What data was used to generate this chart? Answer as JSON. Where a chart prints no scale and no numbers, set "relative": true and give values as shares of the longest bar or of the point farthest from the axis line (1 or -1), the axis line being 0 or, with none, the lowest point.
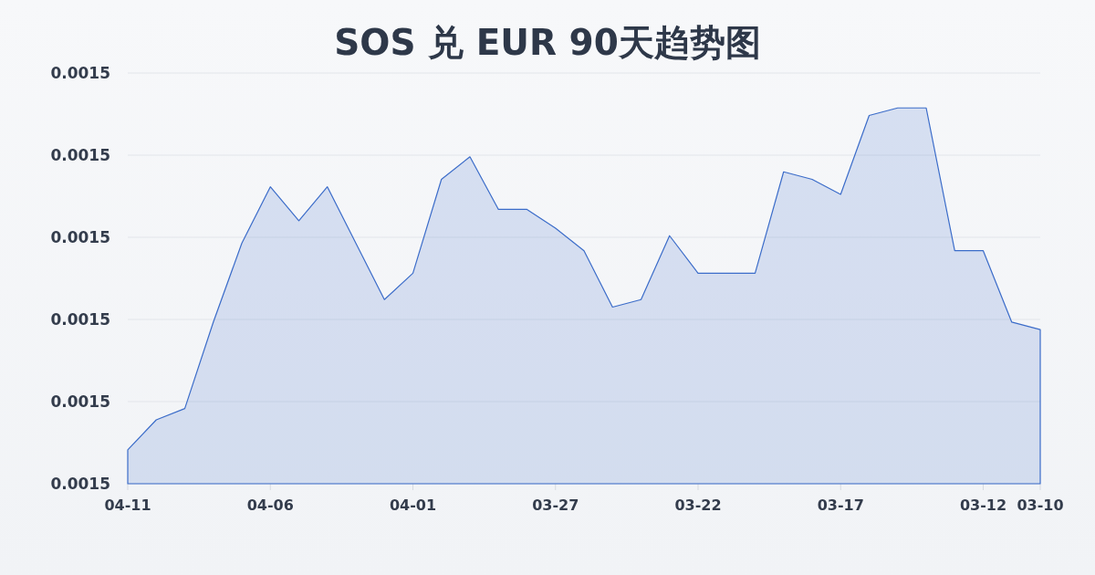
{
  "chart_data": {
    "type": "area",
    "title": "SOS 兑 EUR 90天趋势图",
    "categories": [
      "04-11",
      null,
      null,
      null,
      null,
      "04-06",
      null,
      null,
      null,
      null,
      "04-01",
      null,
      null,
      null,
      null,
      "03-27",
      null,
      null,
      null,
      null,
      "03-22",
      null,
      null,
      null,
      null,
      "03-17",
      null,
      null,
      null,
      null,
      "03-12",
      null,
      "03-10"
    ],
    "values": [
      0.09,
      0.17,
      0.2,
      0.43,
      0.64,
      0.79,
      0.7,
      0.79,
      0.64,
      0.49,
      0.56,
      0.81,
      0.87,
      0.73,
      0.73,
      0.68,
      0.62,
      0.47,
      0.49,
      0.66,
      0.56,
      0.56,
      0.56,
      0.83,
      0.81,
      0.77,
      0.98,
      1,
      1,
      0.62,
      0.62,
      0.43,
      0.41
    ],
    "color": "#3b6cc9",
    "relative": true,
    "y_categories": [
      "0.0015",
      "0.0015",
      "0.0015",
      "0.0015",
      "0.0015",
      "0.0015"
    ],
    "grid": "y"
  }
}
